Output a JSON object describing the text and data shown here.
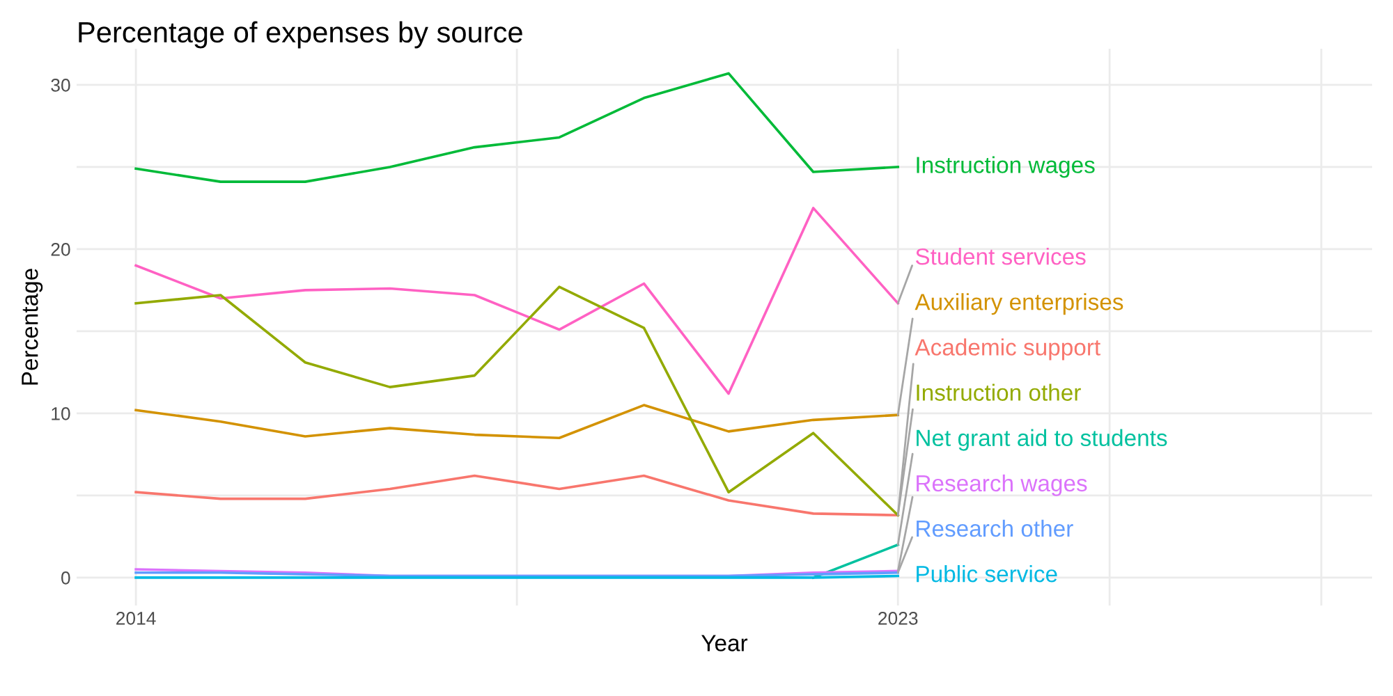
{
  "chart_data": {
    "type": "line",
    "title": "Percentage of expenses by source",
    "xlabel": "Year",
    "ylabel": "Percentage",
    "x": [
      2014,
      2015,
      2016,
      2017,
      2018,
      2019,
      2020,
      2021,
      2022,
      2023
    ],
    "xlim": [
      2013.3,
      2028.6
    ],
    "xticks": [
      2014,
      {
        "value": 2018.5,
        "label": null
      },
      2023,
      {
        "value": 2025.5,
        "label": null
      },
      {
        "value": 2028,
        "label": null
      }
    ],
    "ylim": [
      -1.7,
      32.2
    ],
    "yticks": [
      0,
      {
        "value": 5,
        "label": null
      },
      10,
      {
        "value": 15,
        "label": null
      },
      20,
      {
        "value": 25,
        "label": null
      },
      30
    ],
    "grid": true,
    "line_style": "solid",
    "marker": "none",
    "series": [
      {
        "name": "Instruction wages",
        "color": "#00ba38",
        "values": [
          24.9,
          24.1,
          24.1,
          25.0,
          26.2,
          26.8,
          29.2,
          30.7,
          24.7,
          25.0
        ]
      },
      {
        "name": "Student services",
        "color": "#ff61c3",
        "values": [
          19.0,
          17.0,
          17.5,
          17.6,
          17.2,
          15.1,
          17.9,
          11.2,
          22.5,
          16.7
        ]
      },
      {
        "name": "Auxiliary enterprises",
        "color": "#d39200",
        "values": [
          10.2,
          9.5,
          8.6,
          9.1,
          8.7,
          8.5,
          10.5,
          8.9,
          9.6,
          9.9
        ]
      },
      {
        "name": "Academic support",
        "color": "#f8766d",
        "values": [
          5.2,
          4.8,
          4.8,
          5.4,
          6.2,
          5.4,
          6.2,
          4.7,
          3.9,
          3.8
        ]
      },
      {
        "name": "Instruction other",
        "color": "#93aa00",
        "values": [
          16.7,
          17.2,
          13.1,
          11.6,
          12.3,
          17.7,
          15.2,
          5.2,
          8.8,
          3.8
        ]
      },
      {
        "name": "Net grant aid to students",
        "color": "#00c19f",
        "values": [
          null,
          null,
          null,
          null,
          null,
          null,
          null,
          null,
          0,
          2.0
        ]
      },
      {
        "name": "Research wages",
        "color": "#db72fb",
        "values": [
          0.5,
          0.4,
          0.3,
          0.1,
          0.1,
          0.1,
          0.1,
          0.1,
          0.3,
          0.4
        ]
      },
      {
        "name": "Research other",
        "color": "#619cff",
        "values": [
          0.3,
          0.3,
          0.2,
          0.1,
          0.1,
          0.1,
          0.1,
          0.1,
          0.2,
          0.3
        ]
      },
      {
        "name": "Public service",
        "color": "#00b9e3",
        "values": [
          0,
          0,
          0,
          0,
          0,
          0,
          0,
          0,
          0,
          0.1
        ]
      }
    ]
  }
}
